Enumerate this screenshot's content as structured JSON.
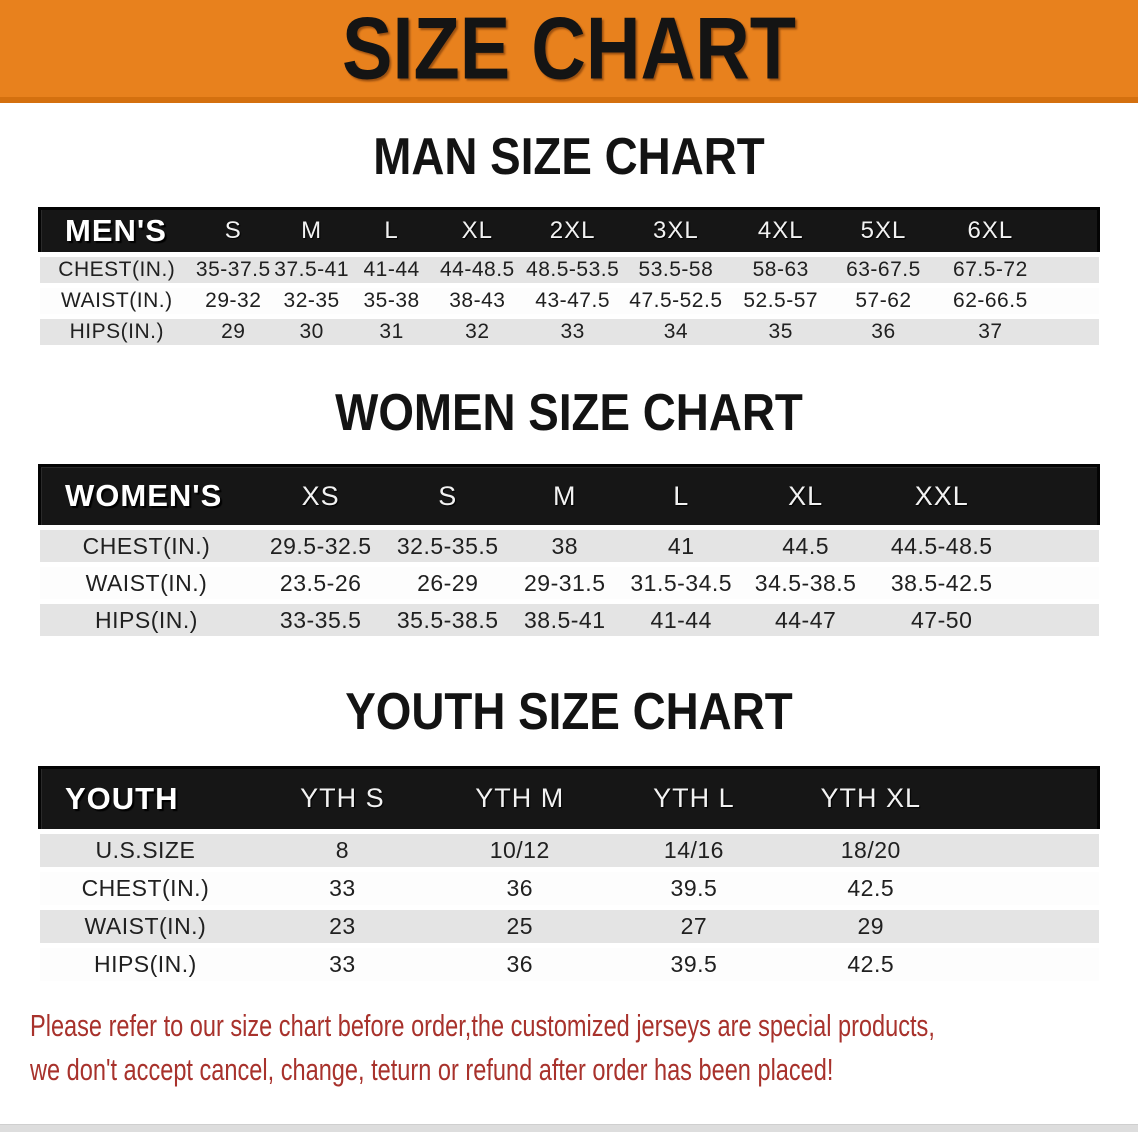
{
  "banner": {
    "title": "SIZE CHART"
  },
  "colors": {
    "banner_bg": "#e8811d",
    "banner_edge": "#d4700f",
    "table_header_bg": "#161616",
    "row_gray": "#e4e4e4",
    "row_white": "#fdfdfd",
    "note_red": "#a8322c"
  },
  "sections": [
    {
      "heading": "MAN SIZE CHART",
      "table": {
        "label": "MEN'S",
        "columns": [
          "S",
          "M",
          "L",
          "XL",
          "2XL",
          "3XL",
          "4XL",
          "5XL",
          "6XL"
        ],
        "rows": [
          {
            "label": "CHEST(IN.)",
            "values": [
              "35-37.5",
              "37.5-41",
              "41-44",
              "44-48.5",
              "48.5-53.5",
              "53.5-58",
              "58-63",
              "63-67.5",
              "67.5-72"
            ]
          },
          {
            "label": "WAIST(IN.)",
            "values": [
              "29-32",
              "32-35",
              "35-38",
              "38-43",
              "43-47.5",
              "47.5-52.5",
              "52.5-57",
              "57-62",
              "62-66.5"
            ]
          },
          {
            "label": "HIPS(IN.)",
            "values": [
              "29",
              "30",
              "31",
              "32",
              "33",
              "34",
              "35",
              "36",
              "37"
            ]
          }
        ]
      }
    },
    {
      "heading": "WOMEN SIZE CHART",
      "table": {
        "label": "WOMEN'S",
        "columns": [
          "XS",
          "S",
          "M",
          "L",
          "XL",
          "XXL"
        ],
        "rows": [
          {
            "label": "CHEST(IN.)",
            "values": [
              "29.5-32.5",
              "32.5-35.5",
              "38",
              "41",
              "44.5",
              "44.5-48.5"
            ]
          },
          {
            "label": "WAIST(IN.)",
            "values": [
              "23.5-26",
              "26-29",
              "29-31.5",
              "31.5-34.5",
              "34.5-38.5",
              "38.5-42.5"
            ]
          },
          {
            "label": "HIPS(IN.)",
            "values": [
              "33-35.5",
              "35.5-38.5",
              "38.5-41",
              "41-44",
              "44-47",
              "47-50"
            ]
          }
        ]
      }
    },
    {
      "heading": "YOUTH SIZE CHART",
      "table": {
        "label": "YOUTH",
        "columns": [
          "YTH S",
          "YTH M",
          "YTH L",
          "YTH XL"
        ],
        "rows": [
          {
            "label": "U.S.SIZE",
            "values": [
              "8",
              "10/12",
              "14/16",
              "18/20"
            ]
          },
          {
            "label": "CHEST(IN.)",
            "values": [
              "33",
              "36",
              "39.5",
              "42.5"
            ]
          },
          {
            "label": "WAIST(IN.)",
            "values": [
              "23",
              "25",
              "27",
              "29"
            ]
          },
          {
            "label": "HIPS(IN.)",
            "values": [
              "33",
              "36",
              "39.5",
              "42.5"
            ]
          }
        ]
      }
    }
  ],
  "note": {
    "line1": "Please refer to our size chart before order,the customized jerseys are special products,",
    "line2": "we don't accept cancel, change, teturn or refund after order has been placed!"
  }
}
